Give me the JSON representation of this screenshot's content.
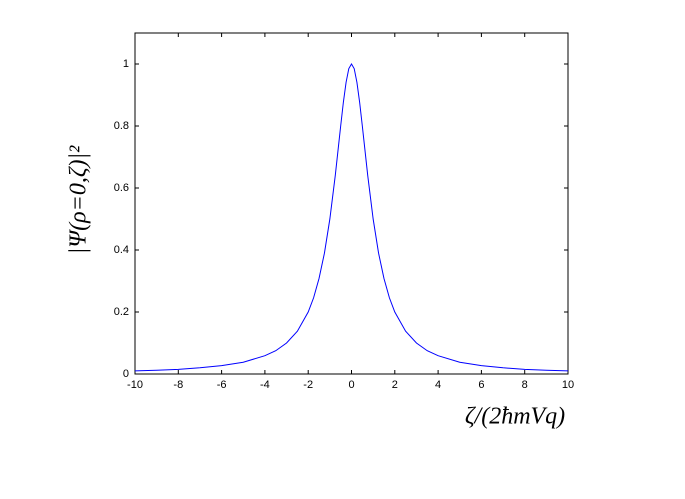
{
  "chart_data": {
    "type": "line",
    "x_label": "ζ/(2ħmVq)",
    "y_label": "|Ψ(ρ=0,ζ)|²",
    "x": [
      -10,
      -9,
      -8,
      -7,
      -6,
      -5,
      -4,
      -3.5,
      -3,
      -2.5,
      -2,
      -1.75,
      -1.5,
      -1.25,
      -1,
      -0.75,
      -0.5,
      -0.375,
      -0.25,
      -0.125,
      0,
      0.125,
      0.25,
      0.375,
      0.5,
      0.75,
      1,
      1.25,
      1.5,
      1.75,
      2,
      2.5,
      3,
      3.5,
      4,
      5,
      6,
      7,
      8,
      9,
      10
    ],
    "series": [
      {
        "color": "#0000ff",
        "values": [
          0.01,
          0.012,
          0.015,
          0.02,
          0.027,
          0.038,
          0.059,
          0.075,
          0.1,
          0.138,
          0.2,
          0.246,
          0.308,
          0.39,
          0.5,
          0.64,
          0.8,
          0.877,
          0.941,
          0.985,
          1,
          0.985,
          0.941,
          0.877,
          0.8,
          0.64,
          0.5,
          0.39,
          0.308,
          0.246,
          0.2,
          0.138,
          0.1,
          0.075,
          0.059,
          0.038,
          0.027,
          0.02,
          0.015,
          0.012,
          0.01
        ]
      }
    ],
    "xlim": [
      -10,
      10
    ],
    "xticks": [
      -10,
      -8,
      -6,
      -4,
      -2,
      0,
      2,
      4,
      6,
      8,
      10
    ],
    "ylim": [
      0,
      1.1
    ],
    "yticks": [
      0,
      0.2,
      0.4,
      0.6,
      0.8,
      1
    ],
    "grid": false
  }
}
